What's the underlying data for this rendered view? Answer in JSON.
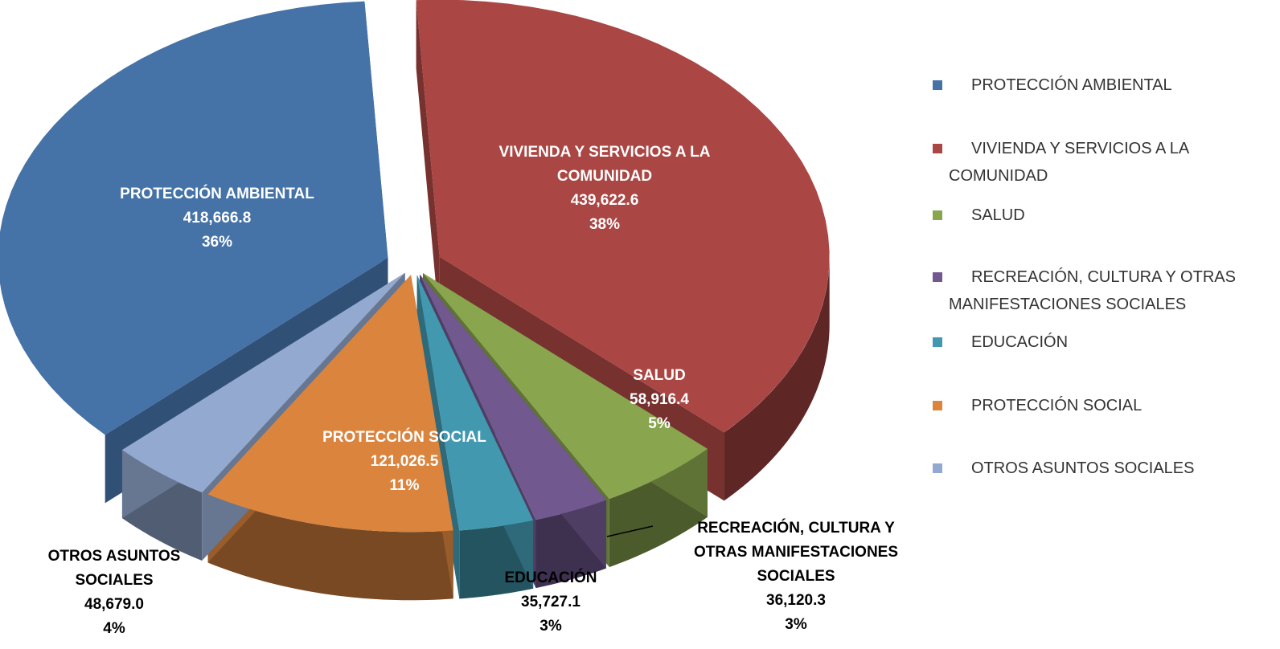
{
  "chart_data": {
    "type": "pie",
    "categories": [
      "PROTECCIÓN AMBIENTAL",
      "VIVIENDA Y SERVICIOS A LA COMUNIDAD",
      "SALUD",
      "RECREACIÓN, CULTURA Y OTRAS MANIFESTACIONES SOCIALES",
      "EDUCACIÓN",
      "PROTECCIÓN SOCIAL",
      "OTROS ASUNTOS SOCIALES"
    ],
    "values": [
      418666.8,
      439622.6,
      58916.4,
      36120.3,
      35727.1,
      121026.5,
      48679.0
    ],
    "value_labels": [
      "418,666.8",
      "439,622.6",
      "58,916.4",
      "36,120.3",
      "35,727.1",
      "121,026.5",
      "48,679.0"
    ],
    "percentages": [
      36,
      38,
      5,
      3,
      3,
      11,
      4
    ],
    "percentage_labels": [
      "36%",
      "38%",
      "5%",
      "3%",
      "3%",
      "11%",
      "4%"
    ],
    "colors": [
      "#4572a7",
      "#aa4643",
      "#89a54e",
      "#71588f",
      "#4198af",
      "#db843d",
      "#93a9cf"
    ],
    "legend": "right"
  }
}
